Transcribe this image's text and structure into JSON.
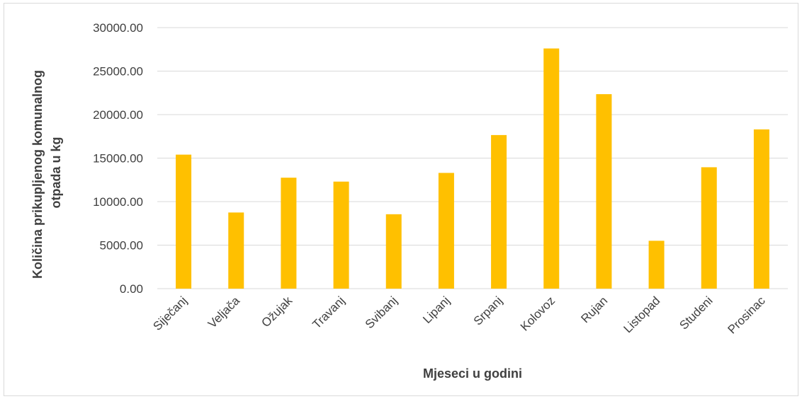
{
  "chart_data": {
    "type": "bar",
    "title": "",
    "xlabel": "Mjeseci u godini",
    "ylabel_lines": [
      "Količina prikupljenog komunalnog",
      "otpada u kg"
    ],
    "categories": [
      "Siječanj",
      "Veljača",
      "Ožujak",
      "Travanj",
      "Svibanj",
      "Lipanj",
      "Srpanj",
      "Kolovoz",
      "Rujan",
      "Listopad",
      "Studeni",
      "Prosinac"
    ],
    "values": [
      15400,
      8750,
      12750,
      12300,
      8550,
      13300,
      17650,
      27600,
      22350,
      5500,
      13950,
      18300
    ],
    "ylim": [
      0,
      30000
    ],
    "yticks": [
      "0.00",
      "5000.00",
      "10000.00",
      "15000.00",
      "20000.00",
      "25000.00",
      "30000.00"
    ],
    "grid": true,
    "legend": "none",
    "bar_color": "#FFC000",
    "grid_color": "#D9D9D9"
  }
}
